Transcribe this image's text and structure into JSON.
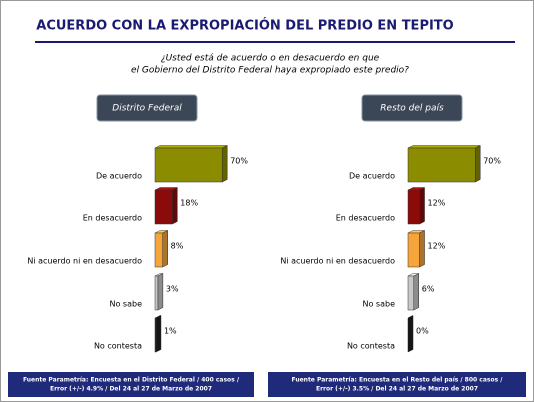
{
  "title": "ACUERDO CON LA EXPROPIACIÓN DEL PREDIO EN TEPITO",
  "question": [
    "¿Usted está de acuerdo o en desacuerdo en que",
    "el Gobierno del Distrito Federal haya expropiado este predio?"
  ],
  "chart_data": [
    {
      "type": "bar",
      "orientation": "horizontal",
      "title": "Distrito Federal",
      "categories": [
        "De acuerdo",
        "En desacuerdo",
        "Ni acuerdo ni en desacuerdo",
        "No sabe",
        "No contesta"
      ],
      "values": [
        70,
        18,
        8,
        3,
        1
      ],
      "value_labels": [
        "70%",
        "18%",
        "8%",
        "3%",
        "1%"
      ],
      "colors": [
        "#8c8c00",
        "#8b0a0a",
        "#f5a53a",
        "#c8c8c8",
        "#1e1e1e"
      ],
      "source": [
        "Fuente Parametría: Encuesta en el Distrito Federal / 400 casos /",
        "Error (+/-) 4.9% / Del 24 al 27 de Marzo de 2007"
      ]
    },
    {
      "type": "bar",
      "orientation": "horizontal",
      "title": "Resto del país",
      "categories": [
        "De acuerdo",
        "En desacuerdo",
        "Ni acuerdo ni en desacuerdo",
        "No sabe",
        "No contesta"
      ],
      "values": [
        70,
        12,
        12,
        6,
        0
      ],
      "value_labels": [
        "70%",
        "12%",
        "12%",
        "6%",
        "0%"
      ],
      "colors": [
        "#8c8c00",
        "#8b0a0a",
        "#f5a53a",
        "#c8c8c8",
        "#1e1e1e"
      ],
      "source": [
        "Fuente Parametría: Encuesta en el Resto del país / 800 casos /",
        "Error (+/-) 3.5% / Del 24 al 27 de Marzo de 2007"
      ]
    }
  ]
}
